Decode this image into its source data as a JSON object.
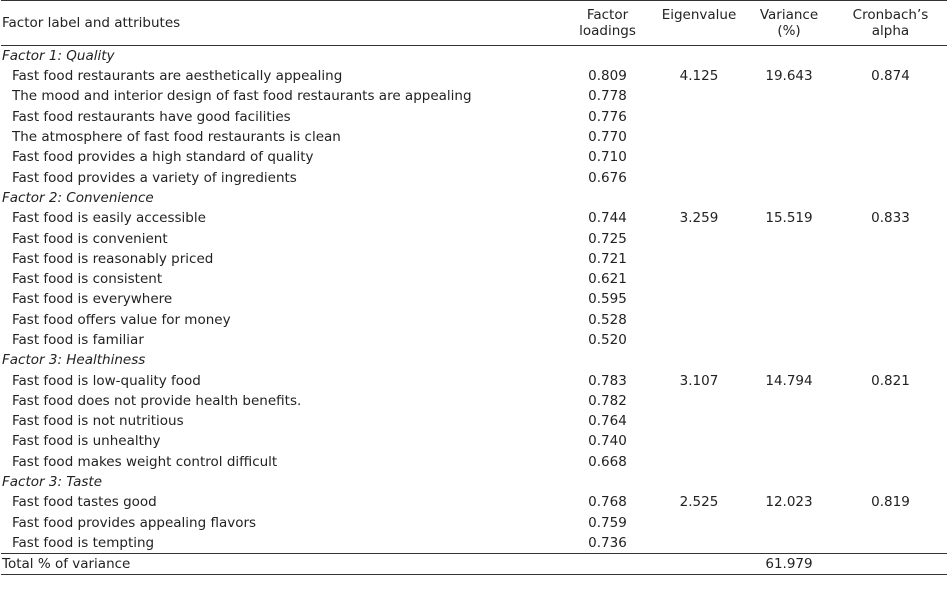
{
  "headers": {
    "factor": "Factor label and attributes",
    "loadings_line1": "Factor",
    "loadings_line2": "loadings",
    "eigen": "Eigenvalue",
    "variance_line1": "Variance",
    "variance_line2": "(%)",
    "alpha_line1": "Cronbach’s",
    "alpha_line2": "alpha"
  },
  "groups": [
    {
      "label": "Factor 1: Quality",
      "eigenvalue": "4.125",
      "variance": "19.643",
      "alpha": "0.874",
      "items": [
        {
          "text": "Fast food restaurants are aesthetically appealing",
          "loading": "0.809"
        },
        {
          "text": "The mood and interior design of fast food restaurants are appealing",
          "loading": "0.778"
        },
        {
          "text": "Fast food restaurants have good facilities",
          "loading": "0.776"
        },
        {
          "text": "The atmosphere of fast food restaurants is clean",
          "loading": "0.770"
        },
        {
          "text": "Fast food provides a high standard of quality",
          "loading": "0.710"
        },
        {
          "text": "Fast food provides a variety of ingredients",
          "loading": "0.676"
        }
      ]
    },
    {
      "label": "Factor 2: Convenience",
      "eigenvalue": "3.259",
      "variance": "15.519",
      "alpha": "0.833",
      "items": [
        {
          "text": "Fast food is easily accessible",
          "loading": "0.744"
        },
        {
          "text": "Fast food is convenient",
          "loading": "0.725"
        },
        {
          "text": "Fast food is reasonably priced",
          "loading": "0.721"
        },
        {
          "text": "Fast food is consistent",
          "loading": "0.621"
        },
        {
          "text": "Fast food is everywhere",
          "loading": "0.595"
        },
        {
          "text": "Fast food offers value for money",
          "loading": "0.528"
        },
        {
          "text": "Fast food is familiar",
          "loading": "0.520"
        }
      ]
    },
    {
      "label": "Factor 3: Healthiness",
      "eigenvalue": "3.107",
      "variance": "14.794",
      "alpha": "0.821",
      "items": [
        {
          "text": "Fast food is low-quality food",
          "loading": "0.783"
        },
        {
          "text": "Fast food does not provide health benefits.",
          "loading": "0.782"
        },
        {
          "text": "Fast food is not nutritious",
          "loading": "0.764"
        },
        {
          "text": "Fast food is unhealthy",
          "loading": "0.740"
        },
        {
          "text": "Fast food makes weight control difficult",
          "loading": "0.668"
        }
      ]
    },
    {
      "label": "Factor 3: Taste",
      "eigenvalue": "2.525",
      "variance": "12.023",
      "alpha": "0.819",
      "items": [
        {
          "text": "Fast food tastes good",
          "loading": "0.768"
        },
        {
          "text": "Fast food provides appealing flavors",
          "loading": "0.759"
        },
        {
          "text": "Fast food is tempting",
          "loading": "0.736"
        }
      ]
    }
  ],
  "total": {
    "label": "Total % of variance",
    "variance": "61.979"
  }
}
